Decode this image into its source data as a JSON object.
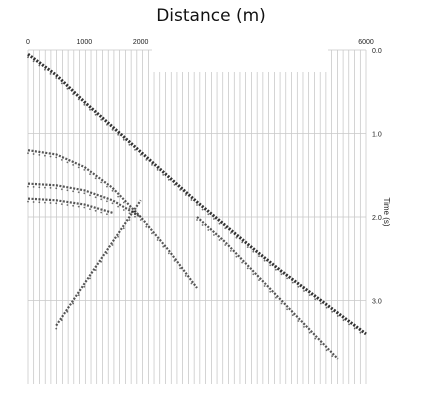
{
  "chart_data": {
    "type": "scatter",
    "title": "Distance (m)",
    "xlabel": "Distance (m)",
    "ylabel": "Time (s)",
    "xlim": [
      0,
      6000
    ],
    "ylim": [
      4.0,
      0.0
    ],
    "x_ticks": [
      "0",
      "1000",
      "2000",
      "6000"
    ],
    "y_ticks": [
      "0.0",
      "1.0",
      "2.0",
      "3.0"
    ],
    "grid": true,
    "trace_count": 60,
    "colors": {
      "wiggle": "#111111",
      "trace": "#b8b8b8",
      "grid": "#c8c8c8"
    },
    "series": [
      {
        "name": "",
        "description_free": true,
        "x": [
          0,
          500,
          1000,
          1500,
          2000,
          2500,
          3000,
          3500,
          4000,
          4500,
          5000,
          5500,
          6000
        ],
        "y": [
          0.05,
          0.3,
          0.62,
          0.92,
          1.22,
          1.52,
          1.82,
          2.1,
          2.38,
          2.65,
          2.9,
          3.15,
          3.4
        ]
      },
      {
        "name": "",
        "x": [
          0,
          500,
          1000,
          1500,
          2000,
          2500,
          3000
        ],
        "y": [
          1.2,
          1.25,
          1.4,
          1.65,
          2.0,
          2.4,
          2.85
        ]
      },
      {
        "name": "",
        "x": [
          0,
          500,
          1000,
          1500,
          2000
        ],
        "y": [
          1.6,
          1.62,
          1.68,
          1.8,
          2.0
        ]
      },
      {
        "name": "",
        "x": [
          0,
          500,
          1000,
          1500
        ],
        "y": [
          1.78,
          1.8,
          1.85,
          1.95
        ]
      },
      {
        "name": "",
        "x": [
          500,
          1000,
          1500,
          2000
        ],
        "y": [
          3.3,
          2.8,
          2.3,
          1.8
        ]
      },
      {
        "name": "",
        "x": [
          3000,
          3500,
          4000,
          4500,
          5000,
          5500
        ],
        "y": [
          2.0,
          2.3,
          2.65,
          3.0,
          3.35,
          3.7
        ]
      }
    ]
  }
}
